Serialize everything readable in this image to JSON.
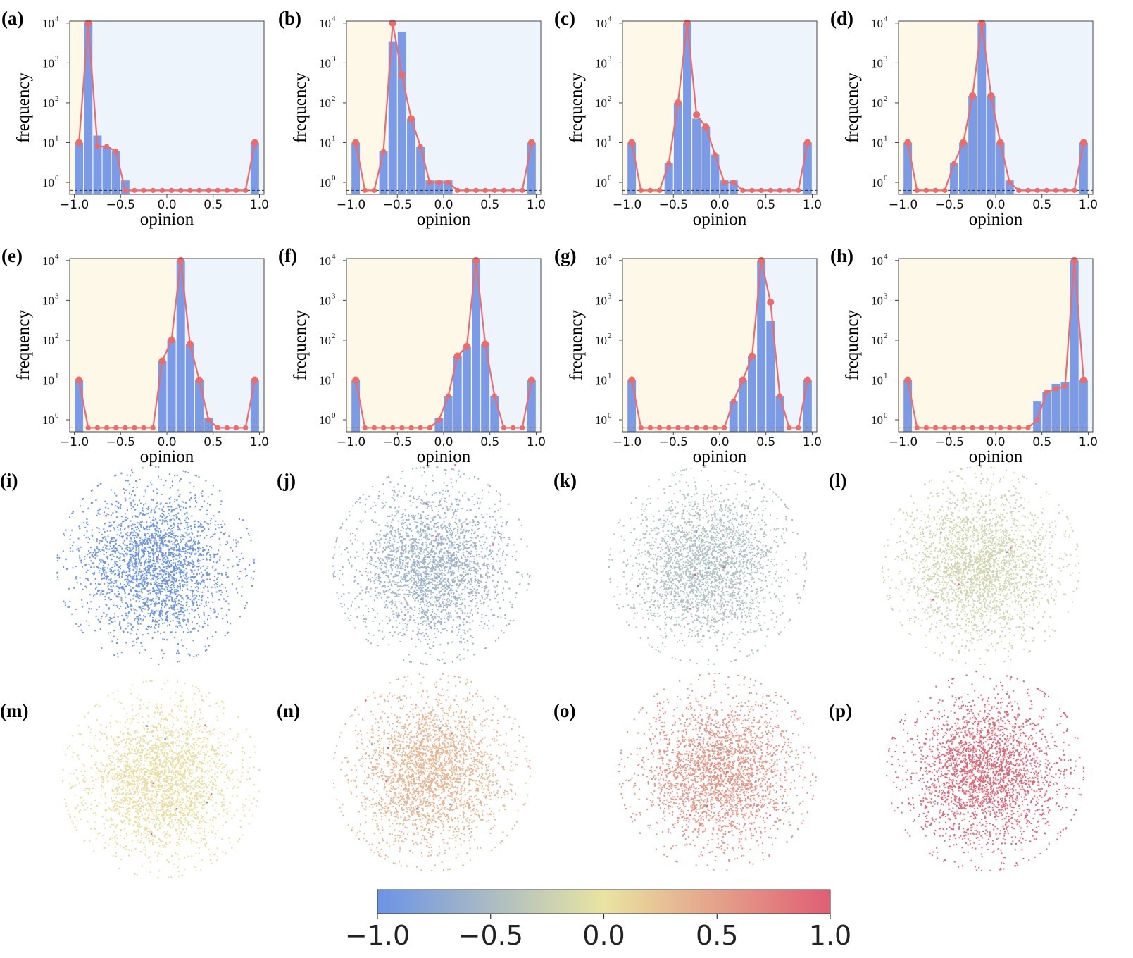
{
  "figure": {
    "histogram_panels": [
      "(a)",
      "(b)",
      "(c)",
      "(d)",
      "(e)",
      "(f)",
      "(g)",
      "(h)"
    ],
    "network_panels": [
      "(i)",
      "(j)",
      "(k)",
      "(l)",
      "(m)",
      "(n)",
      "(o)",
      "(p)"
    ]
  },
  "chart_data": {
    "type": "bar",
    "xlabel": "opinion",
    "ylabel": "frequency",
    "x_ticks": [
      "−1.0",
      "−0.5",
      "0.0",
      "0.5",
      "1.0"
    ],
    "y_ticks": [
      "10",
      "10",
      "10",
      "10",
      "10"
    ],
    "y_tick_exponents": [
      "0",
      "1",
      "2",
      "3",
      "4"
    ],
    "xlim": [
      -1.05,
      1.05
    ],
    "ylim_log10": [
      -0.3,
      4.05
    ],
    "bin_centers": [
      -0.95,
      -0.85,
      -0.75,
      -0.65,
      -0.55,
      -0.45,
      -0.35,
      -0.25,
      -0.15,
      -0.05,
      0.05,
      0.15,
      0.25,
      0.35,
      0.45,
      0.55,
      0.65,
      0.75,
      0.85,
      0.95
    ],
    "background_split_opinion": [
      -0.8,
      -0.55,
      -0.35,
      -0.15,
      0.15,
      0.35,
      0.5,
      0.85
    ],
    "background_colors": {
      "left": "#fdf8e8",
      "right": "#eef4fb"
    },
    "bar_color": "#7b9be6",
    "line_color": "#ee6b6b",
    "histograms": [
      {
        "panel": "(a)",
        "bars": [
          10,
          10000,
          15,
          8,
          6,
          1,
          0,
          0,
          0,
          0,
          0,
          0,
          0,
          0,
          0,
          0,
          0,
          0,
          0,
          10
        ],
        "line": [
          10,
          10000,
          8,
          8,
          6,
          0,
          0,
          0,
          0,
          0,
          0,
          0,
          0,
          0,
          0,
          0,
          0,
          0,
          0,
          10
        ]
      },
      {
        "panel": "(b)",
        "bars": [
          10,
          0,
          0,
          6,
          3500,
          6000,
          40,
          8,
          1,
          1,
          1,
          0,
          0,
          0,
          0,
          0,
          0,
          0,
          0,
          10
        ],
        "line": [
          10,
          0,
          0,
          6,
          10000,
          500,
          40,
          8,
          1,
          1,
          1,
          0,
          0,
          0,
          0,
          0,
          0,
          0,
          0,
          10
        ]
      },
      {
        "panel": "(c)",
        "bars": [
          10,
          0,
          0,
          0,
          3,
          100,
          10000,
          40,
          25,
          5,
          1,
          1,
          0,
          0,
          0,
          0,
          0,
          0,
          0,
          10
        ],
        "line": [
          10,
          0,
          0,
          0,
          3,
          100,
          10000,
          50,
          25,
          5,
          1,
          1,
          0,
          0,
          0,
          0,
          0,
          0,
          0,
          10
        ]
      },
      {
        "panel": "(d)",
        "bars": [
          10,
          0,
          0,
          0,
          0,
          3,
          10,
          150,
          10000,
          150,
          10,
          1,
          0,
          0,
          0,
          0,
          0,
          0,
          0,
          10
        ],
        "line": [
          10,
          0,
          0,
          0,
          0,
          3,
          10,
          150,
          10000,
          150,
          10,
          1,
          0,
          0,
          0,
          0,
          0,
          0,
          0,
          10
        ]
      },
      {
        "panel": "(e)",
        "bars": [
          10,
          0,
          0,
          0,
          0,
          0,
          0,
          0,
          0,
          30,
          100,
          10000,
          80,
          10,
          1,
          0,
          0,
          0,
          0,
          10
        ],
        "line": [
          10,
          0,
          0,
          0,
          0,
          0,
          0,
          0,
          0,
          30,
          100,
          10000,
          80,
          10,
          1,
          0,
          0,
          0,
          0,
          10
        ]
      },
      {
        "panel": "(f)",
        "bars": [
          10,
          0,
          0,
          0,
          0,
          0,
          0,
          0,
          0,
          1,
          4,
          40,
          70,
          10000,
          80,
          4,
          0,
          0,
          0,
          10
        ],
        "line": [
          10,
          0,
          0,
          0,
          0,
          0,
          0,
          0,
          0,
          1,
          4,
          40,
          70,
          10000,
          80,
          4,
          0,
          0,
          0,
          10
        ]
      },
      {
        "panel": "(g)",
        "bars": [
          10,
          0,
          0,
          0,
          0,
          0,
          0,
          0,
          0,
          0,
          0,
          3,
          10,
          40,
          10000,
          300,
          4,
          0,
          0,
          10
        ],
        "line": [
          10,
          0,
          0,
          0,
          0,
          0,
          0,
          0,
          0,
          0,
          0,
          3,
          10,
          40,
          10000,
          900,
          4,
          0,
          0,
          10
        ]
      },
      {
        "panel": "(h)",
        "bars": [
          10,
          0,
          0,
          0,
          0,
          0,
          0,
          0,
          0,
          0,
          0,
          0,
          0,
          0,
          3,
          5,
          8,
          9,
          10000,
          10
        ],
        "line": [
          10,
          0,
          0,
          0,
          0,
          0,
          0,
          0,
          0,
          0,
          0,
          0,
          0,
          0,
          1,
          5,
          6,
          7,
          10000,
          10
        ]
      }
    ],
    "network_mean_opinion": [
      -1.0,
      -0.6,
      -0.45,
      -0.2,
      0.05,
      0.35,
      0.6,
      0.95
    ],
    "colorbar": {
      "colors": [
        "#6b93e6",
        "#e9e4a1",
        "#e05e73"
      ],
      "range": [
        -1.0,
        1.0
      ],
      "ticks": [
        "−1.0",
        "−0.5",
        "0.0",
        "0.5",
        "1.0"
      ]
    }
  }
}
